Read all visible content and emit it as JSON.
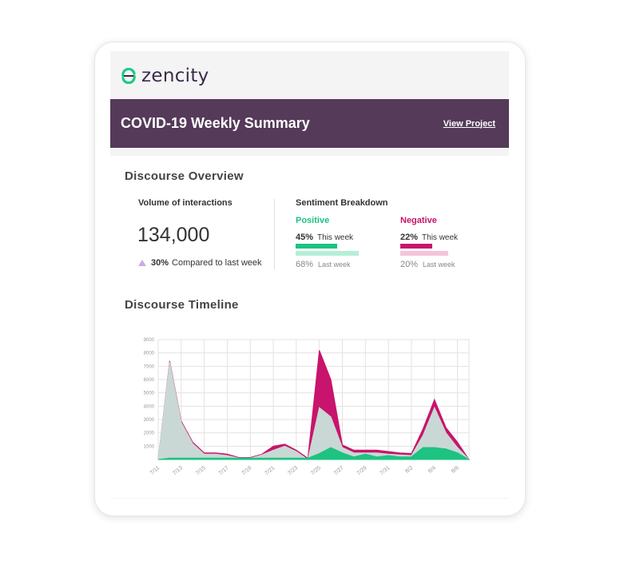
{
  "brand": {
    "name": "zencity",
    "icon": "zencity-logo-icon",
    "color": "#3b2a4a",
    "accent": "#1ecb84"
  },
  "banner": {
    "title": "COVID-19 Weekly Summary",
    "link": "View Project",
    "bg": "#553a59"
  },
  "overview": {
    "heading": "Discourse Overview",
    "volume": {
      "title": "Volume of interactions",
      "value": "134,000",
      "change": "30%",
      "compare_label": "Compared to last week",
      "trend_icon": "triangle-up-icon"
    },
    "sentiment": {
      "title": "Sentiment Breakdown",
      "positive": {
        "label": "Positive",
        "this_week_pct": "45%",
        "this_week_label": "This week",
        "this_week_value": 45,
        "last_week_pct": "68%",
        "last_week_label": "Last week",
        "last_week_value": 68,
        "color": "#1ec281",
        "light": "#b6eed8"
      },
      "negative": {
        "label": "Negative",
        "this_week_pct": "22%",
        "this_week_label": "This week",
        "this_week_value": 22,
        "last_week_pct": "20%",
        "last_week_label": "Last week",
        "last_week_value": 20,
        "color": "#c8146c",
        "light": "#f4c4da"
      }
    }
  },
  "timeline": {
    "heading": "Discourse Timeline"
  },
  "chart_data": {
    "type": "area",
    "title": "Discourse Timeline",
    "ylim": [
      0,
      9000
    ],
    "yticks": [
      1000,
      2000,
      3000,
      4000,
      5000,
      6000,
      7000,
      8000,
      9000
    ],
    "x": [
      "7/11",
      "7/12",
      "7/13",
      "7/14",
      "7/15",
      "7/16",
      "7/17",
      "7/18",
      "7/19",
      "7/20",
      "7/21",
      "7/22",
      "7/23",
      "7/24",
      "7/25",
      "7/26",
      "7/27",
      "7/28",
      "7/29",
      "7/30",
      "7/31",
      "8/1",
      "8/2",
      "8/3",
      "8/4",
      "8/5",
      "8/6",
      "8/7"
    ],
    "xtick_labels": [
      "7/11",
      "7/13",
      "7/15",
      "7/17",
      "7/19",
      "7/21",
      "7/23",
      "7/25",
      "7/27",
      "7/29",
      "7/31",
      "8/2",
      "8/4",
      "8/6"
    ],
    "grid": true,
    "series": [
      {
        "values": [
          0,
          7400,
          2900,
          1300,
          500,
          500,
          400,
          150,
          150,
          400,
          1000,
          1150,
          700,
          100,
          8200,
          6000,
          1100,
          700,
          700,
          700,
          600,
          500,
          450,
          2300,
          4500,
          2400,
          1300,
          0
        ],
        "color": "#c8146c"
      },
      {
        "values": [
          0,
          7300,
          2800,
          1200,
          400,
          400,
          300,
          100,
          100,
          350,
          700,
          1000,
          600,
          0,
          3900,
          3200,
          900,
          500,
          500,
          500,
          400,
          350,
          300,
          1800,
          3900,
          2000,
          900,
          0
        ],
        "color": "#c9d8d5"
      },
      {
        "values": [
          0,
          100,
          100,
          100,
          100,
          100,
          100,
          100,
          100,
          100,
          100,
          100,
          100,
          100,
          450,
          900,
          500,
          200,
          400,
          200,
          300,
          200,
          200,
          900,
          900,
          800,
          500,
          0
        ],
        "color": "#1ec281"
      }
    ]
  }
}
